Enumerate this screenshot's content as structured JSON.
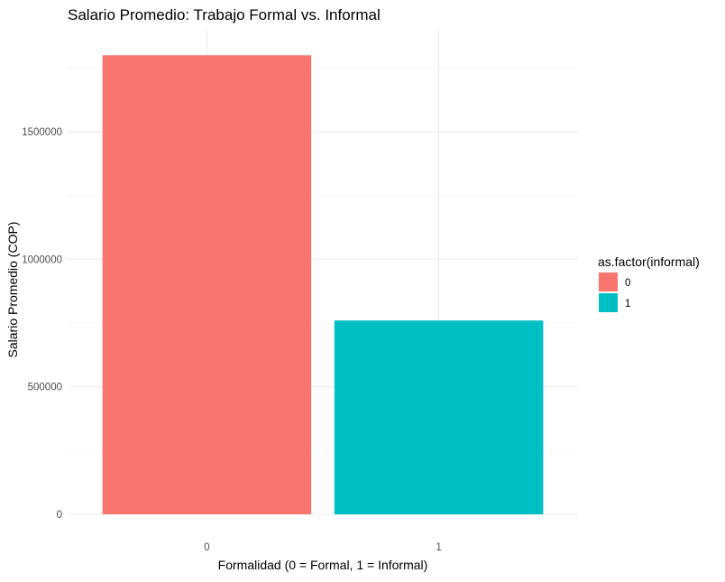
{
  "chart_data": {
    "type": "bar",
    "title": "Salario Promedio: Trabajo Formal vs. Informal",
    "xlabel": "Formalidad (0 = Formal, 1 = Informal)",
    "ylabel": "Salario Promedio (COP)",
    "categories": [
      "0",
      "1"
    ],
    "values": [
      1800000,
      760000
    ],
    "ylim": [
      0,
      1900000
    ],
    "yticks": [
      0,
      500000,
      1000000,
      1500000
    ],
    "ytick_labels": [
      "0",
      "500000",
      "1000000",
      "1500000"
    ],
    "grid": true,
    "legend": {
      "title": "as.factor(informal)",
      "position": "right",
      "entries": [
        {
          "label": "0",
          "color": "#F8766D"
        },
        {
          "label": "1",
          "color": "#00BFC4"
        }
      ]
    },
    "colors": [
      "#F8766D",
      "#00BFC4"
    ]
  }
}
